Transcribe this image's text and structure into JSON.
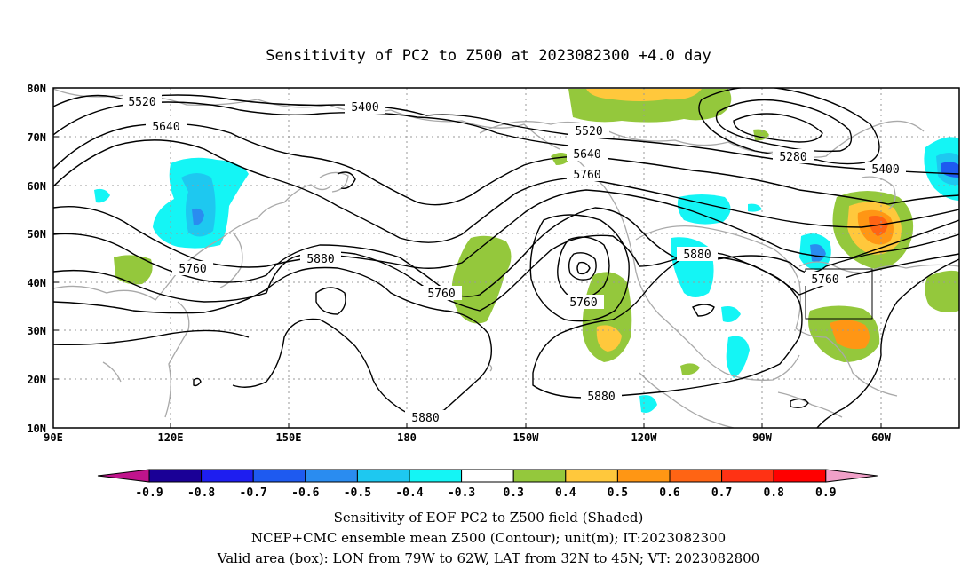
{
  "title": "Sensitivity of PC2 to Z500 at 2023082300 +4.0 day",
  "axes": {
    "x_ticks": [
      "90E",
      "120E",
      "150E",
      "180",
      "150W",
      "120W",
      "90W",
      "60W"
    ],
    "y_ticks": [
      "80N",
      "70N",
      "60N",
      "50N",
      "40N",
      "30N",
      "20N",
      "10N"
    ]
  },
  "contour_labels": {
    "c5520_a": "5520",
    "c5400_a": "5400",
    "c5640_a": "5640",
    "c5760_a": "5760",
    "c5880_a": "5880",
    "c5760_b": "5760",
    "c5520_b": "5520",
    "c5640_b": "5640",
    "c5760_c": "5760",
    "c5760_d": "5760",
    "c5880_b": "5880",
    "c5880_c": "5880",
    "c5760_e": "5760",
    "c5280": "5280",
    "c5400_b": "5400",
    "c5880_d": "5880"
  },
  "colorbar": {
    "labels": [
      "-0.9",
      "-0.8",
      "-0.7",
      "-0.6",
      "-0.5",
      "-0.4",
      "-0.3",
      "0.3",
      "0.4",
      "0.5",
      "0.6",
      "0.7",
      "0.8",
      "0.9"
    ],
    "colors": [
      "#1a0096",
      "#1e1ef0",
      "#1e5af0",
      "#2a8cf0",
      "#1ec8f0",
      "#14f5f5",
      "#ffffff",
      "#94c83c",
      "#ffc83c",
      "#ff9614",
      "#ff6414",
      "#ff3214",
      "#ff0000"
    ],
    "low_extension_color": "#c0148c",
    "high_extension_color": "#f0a0c8"
  },
  "captions": {
    "line1": "Sensitivity of EOF PC2 to Z500 field (Shaded)",
    "line2": "NCEP+CMC ensemble mean Z500 (Contour); unit(m); IT:2023082300",
    "line3": "Valid area (box): LON from 79W to 62W, LAT from 32N to 45N; VT: 2023082800"
  },
  "valid_box": {
    "lon_west": "79W",
    "lon_east": "62W",
    "lat_south": "32N",
    "lat_north": "45N"
  }
}
